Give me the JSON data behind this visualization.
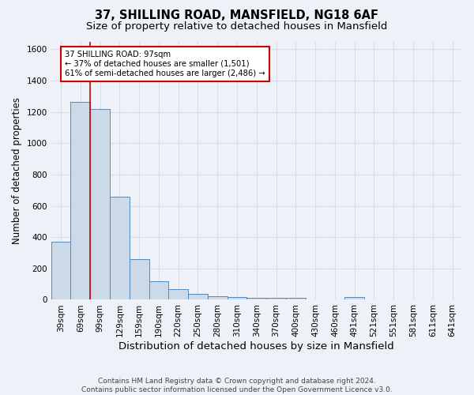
{
  "title1": "37, SHILLING ROAD, MANSFIELD, NG18 6AF",
  "title2": "Size of property relative to detached houses in Mansfield",
  "xlabel": "Distribution of detached houses by size in Mansfield",
  "ylabel": "Number of detached properties",
  "footnote": "Contains HM Land Registry data © Crown copyright and database right 2024.\nContains public sector information licensed under the Open Government Licence v3.0.",
  "categories": [
    "39sqm",
    "69sqm",
    "99sqm",
    "129sqm",
    "159sqm",
    "190sqm",
    "220sqm",
    "250sqm",
    "280sqm",
    "310sqm",
    "340sqm",
    "370sqm",
    "400sqm",
    "430sqm",
    "460sqm",
    "491sqm",
    "521sqm",
    "551sqm",
    "581sqm",
    "611sqm",
    "641sqm"
  ],
  "values": [
    370,
    1265,
    1220,
    660,
    260,
    120,
    70,
    38,
    25,
    18,
    12,
    10,
    10,
    0,
    0,
    18,
    0,
    0,
    0,
    0,
    0
  ],
  "bar_color": "#ccd9e8",
  "bar_edge_color": "#5588bb",
  "red_line_index": 2,
  "annotation_line1": "37 SHILLING ROAD: 97sqm",
  "annotation_line2": "← 37% of detached houses are smaller (1,501)",
  "annotation_line3": "61% of semi-detached houses are larger (2,486) →",
  "annotation_box_color": "#ffffff",
  "annotation_box_edge": "#cc0000",
  "ylim": [
    0,
    1650
  ],
  "yticks": [
    0,
    200,
    400,
    600,
    800,
    1000,
    1200,
    1400,
    1600
  ],
  "bg_color": "#eef2f8",
  "grid_color": "#d8dde8",
  "title1_fontsize": 10.5,
  "title2_fontsize": 9.5,
  "xlabel_fontsize": 9.5,
  "ylabel_fontsize": 8.5,
  "tick_fontsize": 7.5,
  "footnote_fontsize": 6.5
}
